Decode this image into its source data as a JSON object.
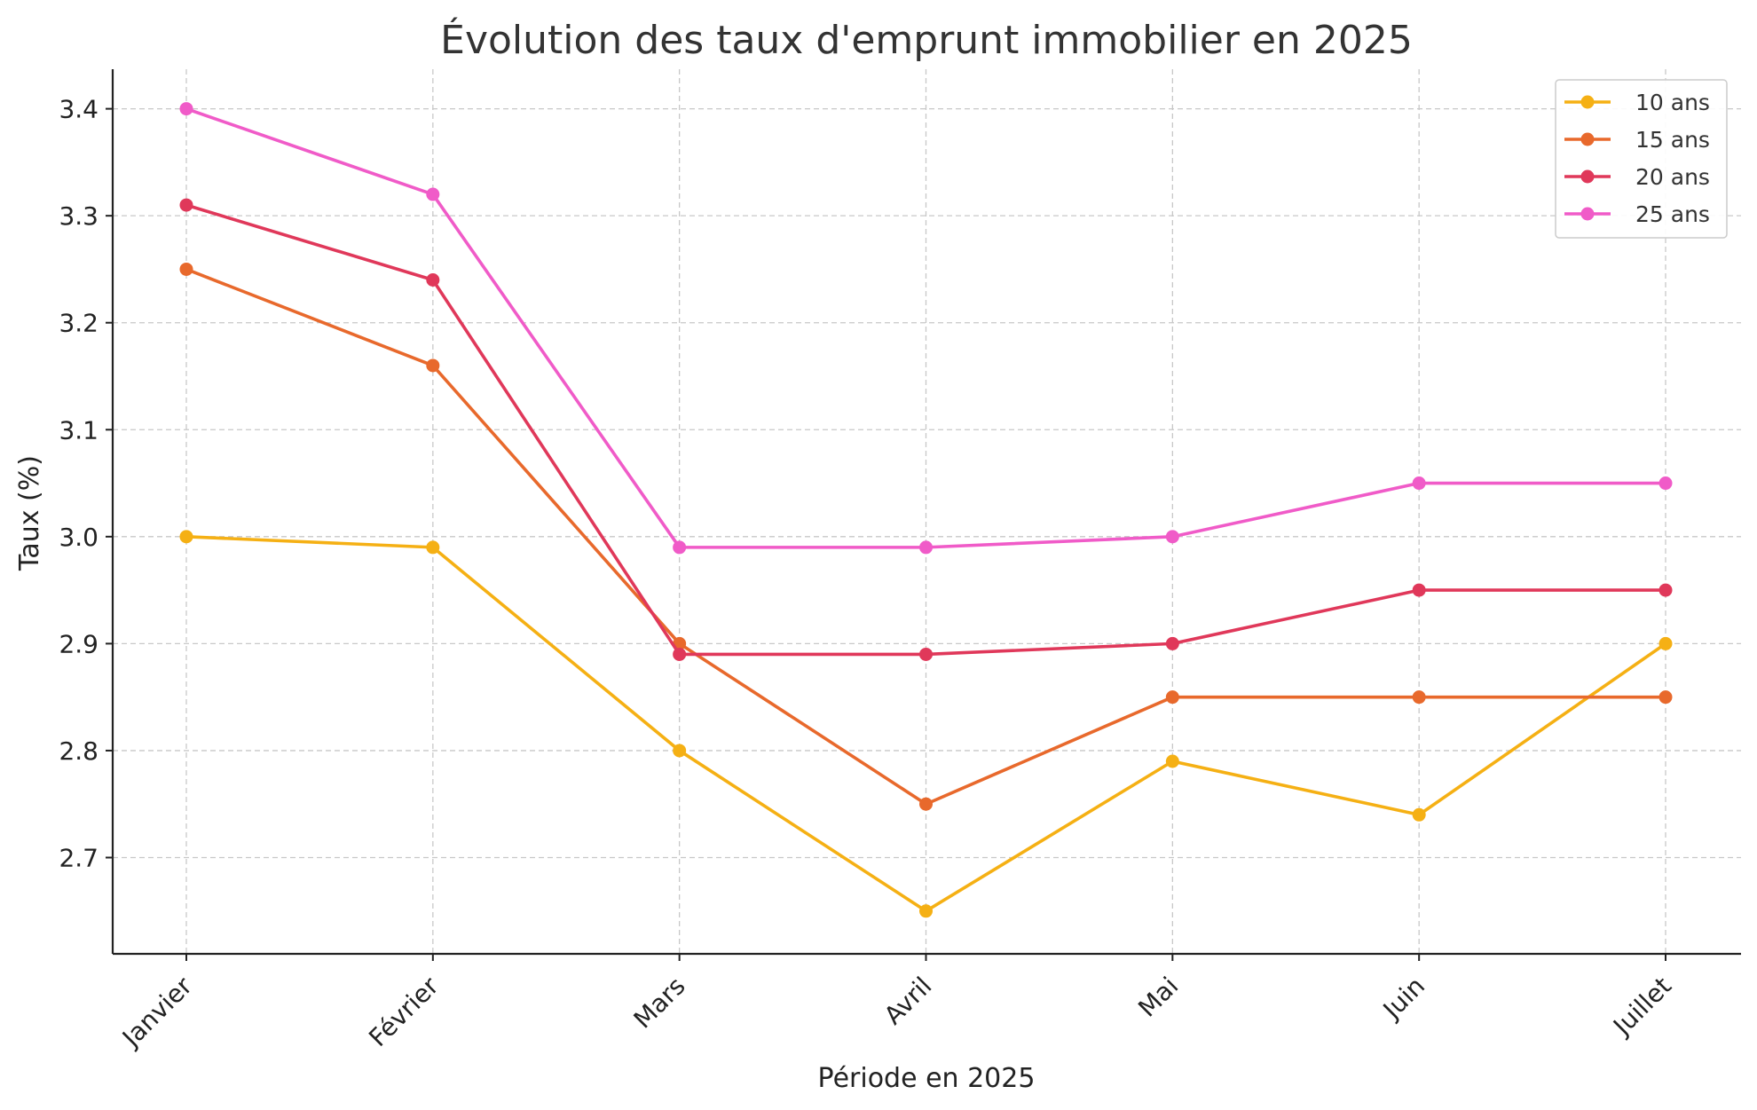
{
  "chart_data": {
    "type": "line",
    "title": "Évolution des taux d'emprunt immobilier en 2025",
    "xlabel": "Période en 2025",
    "ylabel": "Taux (%)",
    "categories": [
      "Janvier",
      "Février",
      "Mars",
      "Avril",
      "Mai",
      "Juin",
      "Juillet"
    ],
    "ylim": [
      2.61,
      3.437
    ],
    "yticks": [
      "2.7",
      "2.8",
      "2.9",
      "3.0",
      "3.1",
      "3.2",
      "3.3",
      "3.4"
    ],
    "grid": true,
    "legend_position": "top-right",
    "series": [
      {
        "name": "10 ans",
        "color": "#f5b014",
        "values": [
          3.0,
          2.99,
          2.8,
          2.65,
          2.79,
          2.74,
          2.9
        ]
      },
      {
        "name": "15 ans",
        "color": "#e8692c",
        "values": [
          3.25,
          3.16,
          2.9,
          2.75,
          2.85,
          2.85,
          2.85
        ]
      },
      {
        "name": "20 ans",
        "color": "#e0385a",
        "values": [
          3.31,
          3.24,
          2.89,
          2.89,
          2.9,
          2.95,
          2.95
        ]
      },
      {
        "name": "25 ans",
        "color": "#f05bc8",
        "values": [
          3.4,
          3.32,
          2.99,
          2.99,
          3.0,
          3.05,
          3.05
        ]
      }
    ]
  }
}
